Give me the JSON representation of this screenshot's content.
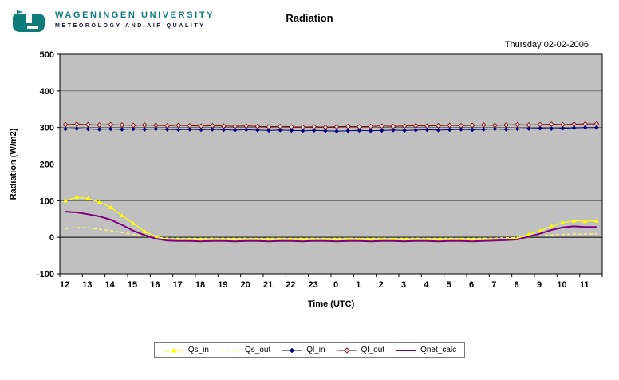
{
  "header": {
    "logo_title": "WAGENINGEN UNIVERSITY",
    "logo_subtitle": "METEOROLOGY AND AIR QUALITY",
    "title": "Radiation",
    "date": "Thursday 02-02-2006"
  },
  "chart_data": {
    "type": "line",
    "title": "Radiation",
    "xlabel": "Time (UTC)",
    "ylabel": "Radiation (W/m2)",
    "ylim": [
      -100,
      500
    ],
    "yticks": [
      500,
      400,
      300,
      200,
      100,
      0,
      -100
    ],
    "x_tick_labels": [
      "12",
      "13",
      "14",
      "15",
      "16",
      "17",
      "18",
      "19",
      "20",
      "21",
      "22",
      "23",
      "0",
      "1",
      "2",
      "3",
      "4",
      "5",
      "6",
      "7",
      "8",
      "9",
      "10",
      "11"
    ],
    "x_step_hours": 0.5,
    "grid": true,
    "plot_bg": "#C0C0C0",
    "legend_position": "bottom",
    "series": [
      {
        "name": "Qs_in",
        "color": "#FFFF00",
        "marker": "triangle",
        "width": 1.2,
        "values": [
          100,
          110,
          106,
          96,
          82,
          60,
          38,
          16,
          2,
          -5,
          -6,
          -6,
          -7,
          -6,
          -6,
          -7,
          -6,
          -6,
          -7,
          -6,
          -6,
          -7,
          -6,
          -6,
          -7,
          -6,
          -6,
          -7,
          -6,
          -6,
          -7,
          -6,
          -6,
          -7,
          -6,
          -6,
          -7,
          -6,
          -6,
          -5,
          -2,
          8,
          18,
          30,
          40,
          45,
          44,
          45
        ]
      },
      {
        "name": "Qs_out",
        "color": "#FFFF66",
        "marker": null,
        "dash": "4 3",
        "width": 1.2,
        "values": [
          24,
          27,
          26,
          22,
          18,
          13,
          8,
          3,
          0,
          -2,
          -2,
          -3,
          -2,
          -2,
          -3,
          -2,
          -2,
          -3,
          -2,
          -2,
          -3,
          -2,
          -2,
          -3,
          -2,
          -2,
          -3,
          -2,
          -2,
          -3,
          -2,
          -2,
          -3,
          -2,
          -2,
          -3,
          -2,
          -2,
          -2,
          -1,
          -1,
          2,
          4,
          6,
          8,
          9,
          9,
          10
        ]
      },
      {
        "name": "Ql_in",
        "color": "#000080",
        "marker": "diamond",
        "width": 1,
        "values": [
          296,
          297,
          296,
          295,
          296,
          295,
          296,
          295,
          296,
          295,
          294,
          295,
          294,
          295,
          294,
          293,
          294,
          293,
          292,
          293,
          292,
          291,
          292,
          291,
          290,
          291,
          292,
          291,
          292,
          293,
          292,
          293,
          294,
          293,
          294,
          295,
          294,
          295,
          296,
          295,
          296,
          297,
          298,
          297,
          298,
          299,
          300,
          300
        ]
      },
      {
        "name": "Ql_out",
        "color": "#800000",
        "marker": "diamond-open",
        "marker_fill": "#D8D8D8",
        "width": 1,
        "values": [
          308,
          309,
          308,
          307,
          308,
          307,
          306,
          307,
          306,
          305,
          306,
          305,
          304,
          305,
          304,
          303,
          304,
          303,
          302,
          303,
          302,
          301,
          302,
          301,
          302,
          303,
          302,
          303,
          304,
          303,
          304,
          305,
          304,
          305,
          306,
          305,
          306,
          307,
          306,
          307,
          308,
          307,
          308,
          309,
          308,
          309,
          310,
          310
        ]
      },
      {
        "name": "Qnet_calc",
        "color": "#800080",
        "marker": null,
        "width": 2,
        "values": [
          70,
          68,
          63,
          57,
          48,
          34,
          18,
          6,
          -4,
          -9,
          -10,
          -10,
          -11,
          -10,
          -10,
          -11,
          -10,
          -10,
          -11,
          -10,
          -10,
          -11,
          -10,
          -10,
          -11,
          -10,
          -10,
          -11,
          -10,
          -10,
          -11,
          -10,
          -10,
          -11,
          -10,
          -10,
          -11,
          -10,
          -9,
          -8,
          -6,
          2,
          10,
          20,
          27,
          30,
          28,
          28
        ]
      }
    ]
  }
}
